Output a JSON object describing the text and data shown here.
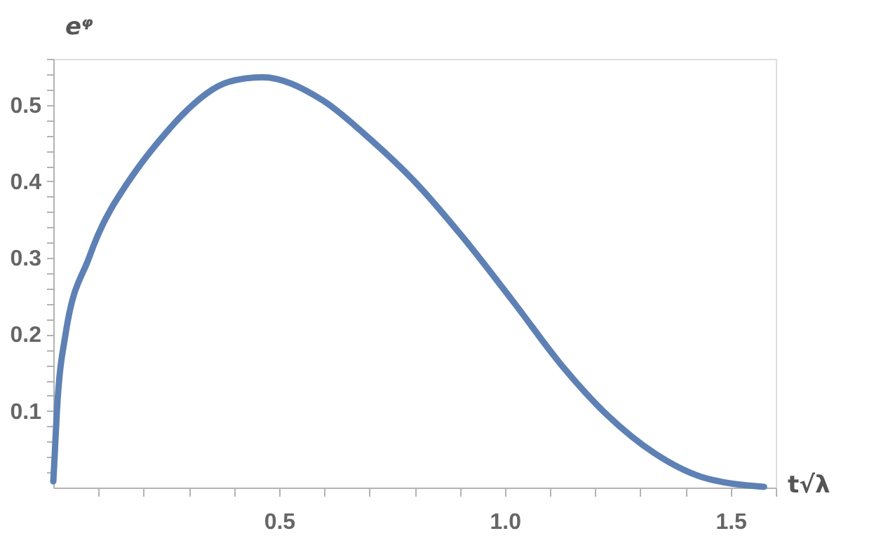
{
  "chart_data": {
    "type": "line",
    "xlabel": "t√λ",
    "ylabel": "eᵠ",
    "x": [
      0.0,
      0.002,
      0.008,
      0.027,
      0.079,
      0.099,
      0.161,
      0.182,
      0.252,
      0.286,
      0.389,
      0.462,
      0.596,
      0.7,
      0.803,
      0.907,
      1.021,
      1.124,
      1.228,
      1.331,
      1.435,
      1.574
    ],
    "series": [
      {
        "color": "#5e81b5",
        "values": [
          0.008,
          0.03,
          0.1,
          0.2,
          0.3,
          0.33,
          0.395,
          0.413,
          0.465,
          0.487,
          0.53,
          0.536,
          0.506,
          0.456,
          0.398,
          0.327,
          0.241,
          0.161,
          0.094,
          0.045,
          0.014,
          0.001
        ]
      }
    ],
    "xlim": [
      0,
      1.6
    ],
    "ylim": [
      0,
      0.56
    ],
    "xticks": [
      {
        "value": 0.1,
        "label": null
      },
      {
        "value": 0.2,
        "label": null
      },
      {
        "value": 0.3,
        "label": null
      },
      {
        "value": 0.4,
        "label": null
      },
      0.5,
      {
        "value": 0.6,
        "label": null
      },
      {
        "value": 0.7,
        "label": null
      },
      {
        "value": 0.8,
        "label": null
      },
      {
        "value": 0.9,
        "label": null
      },
      {
        "value": 1.0,
        "label": "1.0"
      },
      {
        "value": 1.1,
        "label": null
      },
      {
        "value": 1.2,
        "label": null
      },
      {
        "value": 1.3,
        "label": null
      },
      {
        "value": 1.4,
        "label": null
      },
      1.5,
      {
        "value": 1.6,
        "label": null
      }
    ],
    "yticks": [
      {
        "value": 0.02,
        "label": null
      },
      {
        "value": 0.04,
        "label": null
      },
      {
        "value": 0.06,
        "label": null
      },
      {
        "value": 0.08,
        "label": null
      },
      0.1,
      {
        "value": 0.12,
        "label": null
      },
      {
        "value": 0.14,
        "label": null
      },
      {
        "value": 0.16,
        "label": null
      },
      {
        "value": 0.18,
        "label": null
      },
      0.2,
      {
        "value": 0.22,
        "label": null
      },
      {
        "value": 0.24,
        "label": null
      },
      {
        "value": 0.26,
        "label": null
      },
      {
        "value": 0.28,
        "label": null
      },
      0.3,
      {
        "value": 0.32,
        "label": null
      },
      {
        "value": 0.34,
        "label": null
      },
      {
        "value": 0.36,
        "label": null
      },
      {
        "value": 0.38,
        "label": null
      },
      0.4,
      {
        "value": 0.42,
        "label": null
      },
      {
        "value": 0.44,
        "label": null
      },
      {
        "value": 0.46,
        "label": null
      },
      {
        "value": 0.48,
        "label": null
      },
      0.5,
      {
        "value": 0.52,
        "label": null
      },
      {
        "value": 0.54,
        "label": null
      },
      {
        "value": 0.56,
        "label": null
      }
    ],
    "grid": false,
    "marker": "none",
    "line_style": "solid"
  }
}
